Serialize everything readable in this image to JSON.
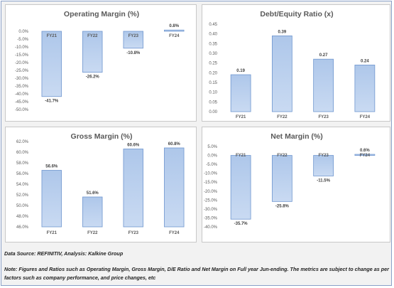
{
  "chart_data": [
    {
      "type": "bar",
      "title": "Operating Margin (%)",
      "categories": [
        "FY21",
        "FY22",
        "FY23",
        "FY24"
      ],
      "values": [
        -41.7,
        -26.2,
        -10.8,
        0.8
      ],
      "labels": [
        "-41.7%",
        "-26.2%",
        "-10.8%",
        "0.8%"
      ],
      "ylim": [
        -50,
        0
      ],
      "yticks": [
        0,
        -5,
        -10,
        -15,
        -20,
        -25,
        -30,
        -35,
        -40,
        -45,
        -50
      ],
      "ytick_labels": [
        "0.0%",
        "-5.0%",
        "-10.0%",
        "-15.0%",
        "-20.0%",
        "-25.0%",
        "-30.0%",
        "-35.0%",
        "-40.0%",
        "-45.0%",
        "-50.0%"
      ]
    },
    {
      "type": "bar",
      "title": "Debt/Equity Ratio (x)",
      "categories": [
        "FY21",
        "FY22",
        "FY23",
        "FY24"
      ],
      "values": [
        0.19,
        0.39,
        0.27,
        0.24
      ],
      "labels": [
        "0.19",
        "0.39",
        "0.27",
        "0.24"
      ],
      "ylim": [
        0,
        0.45
      ],
      "yticks": [
        0.45,
        0.4,
        0.35,
        0.3,
        0.25,
        0.2,
        0.15,
        0.1,
        0.05,
        0.0
      ],
      "ytick_labels": [
        "0.45",
        "0.40",
        "0.35",
        "0.30",
        "0.25",
        "0.20",
        "0.15",
        "0.10",
        "0.05",
        "0.00"
      ]
    },
    {
      "type": "bar",
      "title": "Gross Margin (%)",
      "categories": [
        "FY21",
        "FY22",
        "FY23",
        "FY24"
      ],
      "values": [
        56.6,
        51.6,
        60.6,
        60.8
      ],
      "labels": [
        "56.6%",
        "51.6%",
        "60.6%",
        "60.8%"
      ],
      "ylim": [
        46,
        62
      ],
      "yticks": [
        62,
        60,
        58,
        56,
        54,
        52,
        50,
        48,
        46
      ],
      "ytick_labels": [
        "62.0%",
        "60.0%",
        "58.0%",
        "56.0%",
        "54.0%",
        "52.0%",
        "50.0%",
        "48.0%",
        "46.0%"
      ]
    },
    {
      "type": "bar",
      "title": "Net Margin (%)",
      "categories": [
        "FY21",
        "FY22",
        "FY23",
        "FY24"
      ],
      "values": [
        -35.7,
        -25.8,
        -11.5,
        0.6
      ],
      "labels": [
        "-35.7%",
        "-25.8%",
        "-11.5%",
        "0.6%"
      ],
      "ylim": [
        -40,
        5
      ],
      "yticks": [
        5,
        0,
        -5,
        -10,
        -15,
        -20,
        -25,
        -30,
        -35,
        -40
      ],
      "ytick_labels": [
        "5.0%",
        "0.0%",
        "-5.0%",
        "-10.0%",
        "-15.0%",
        "-20.0%",
        "-25.0%",
        "-30.0%",
        "-35.0%",
        "-40.0%"
      ]
    }
  ],
  "footer": {
    "source": "Data Source: REFINITIV, Analysis: Kalkine Group",
    "note": "Note: Figures and Ratios such as Operating Margin, Gross Margin, D/E Ratio and Net Margin on Full  year Jun-ending. The metrics are subject to change as per factors such as company performance, and price changes, etc"
  },
  "colors": {
    "bar_fill_top": "#aec7ea",
    "bar_fill_bottom": "#c9daf2",
    "bar_stroke": "#6f96cf",
    "axis_text": "#595959",
    "panel_border": "#c8c8c8"
  }
}
